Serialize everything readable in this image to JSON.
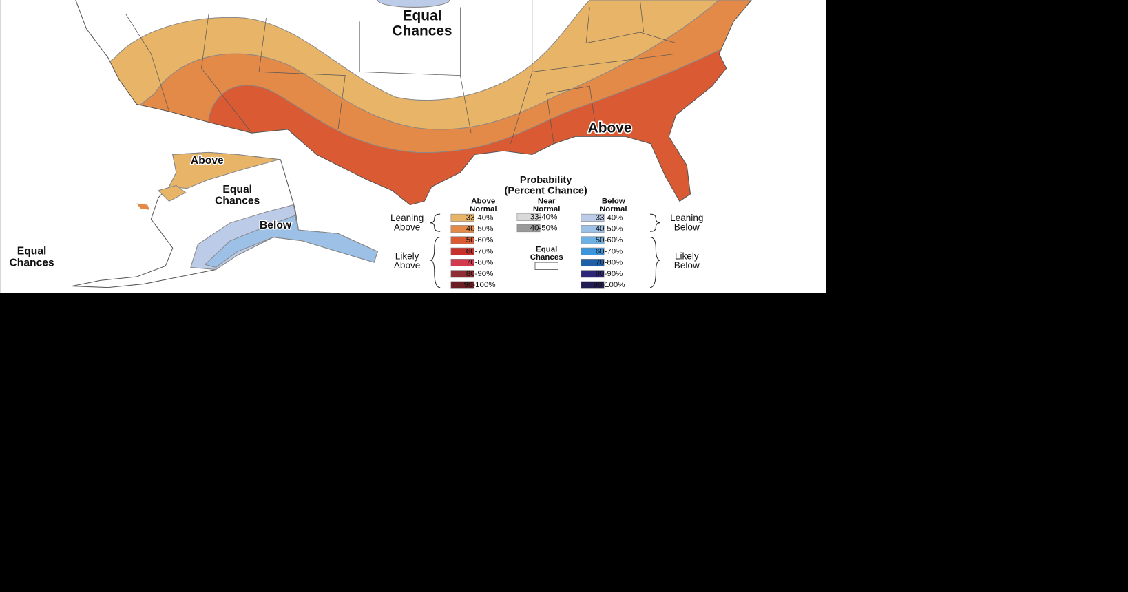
{
  "map_labels": [
    {
      "lines": [
        "Equal",
        "Chances"
      ]
    },
    {
      "lines": [
        "Above"
      ]
    },
    {
      "lines": [
        "Above"
      ]
    },
    {
      "lines": [
        "Equal",
        "Chances"
      ]
    },
    {
      "lines": [
        "Below"
      ]
    },
    {
      "lines": [
        "Equal",
        "Chances"
      ]
    }
  ],
  "legend": {
    "title": [
      "Probability",
      "(Percent Chance)"
    ],
    "columns": [
      {
        "header": [
          "Above",
          "Normal"
        ],
        "items": [
          {
            "label": "33-40%",
            "color": "#e8b468"
          },
          {
            "label": "40-50%",
            "color": "#e48a48"
          },
          {
            "label": "50-60%",
            "color": "#d95a33"
          },
          {
            "label": "60-70%",
            "color": "#c8302b"
          },
          {
            "label": "70-80%",
            "color": "#d33a4e"
          },
          {
            "label": "80-90%",
            "color": "#8f2c34"
          },
          {
            "label": "90-100%",
            "color": "#6b1f24"
          }
        ]
      },
      {
        "header": [
          "Near",
          "Normal"
        ],
        "items": [
          {
            "label": "33-40%",
            "color": "#d9d9d9"
          },
          {
            "label": "40-50%",
            "color": "#9a9a9a"
          }
        ]
      },
      {
        "header": [
          "Below",
          "Normal"
        ],
        "items": [
          {
            "label": "33-40%",
            "color": "#bccbe8"
          },
          {
            "label": "40-50%",
            "color": "#9cc0e6"
          },
          {
            "label": "50-60%",
            "color": "#6fb0e2"
          },
          {
            "label": "60-70%",
            "color": "#3d96dc"
          },
          {
            "label": "70-80%",
            "color": "#1f5fa8"
          },
          {
            "label": "80-90%",
            "color": "#2e2779"
          },
          {
            "label": "90-100%",
            "color": "#211d52"
          }
        ]
      }
    ],
    "equal_chances": {
      "lines": [
        "Equal",
        "Chances"
      ],
      "color": "#ffffff"
    },
    "groups": [
      {
        "lines": [
          "Leaning",
          "Above"
        ]
      },
      {
        "lines": [
          "Likely",
          "Above"
        ]
      },
      {
        "lines": [
          "Leaning",
          "Below"
        ]
      },
      {
        "lines": [
          "Likely",
          "Below"
        ]
      }
    ]
  }
}
